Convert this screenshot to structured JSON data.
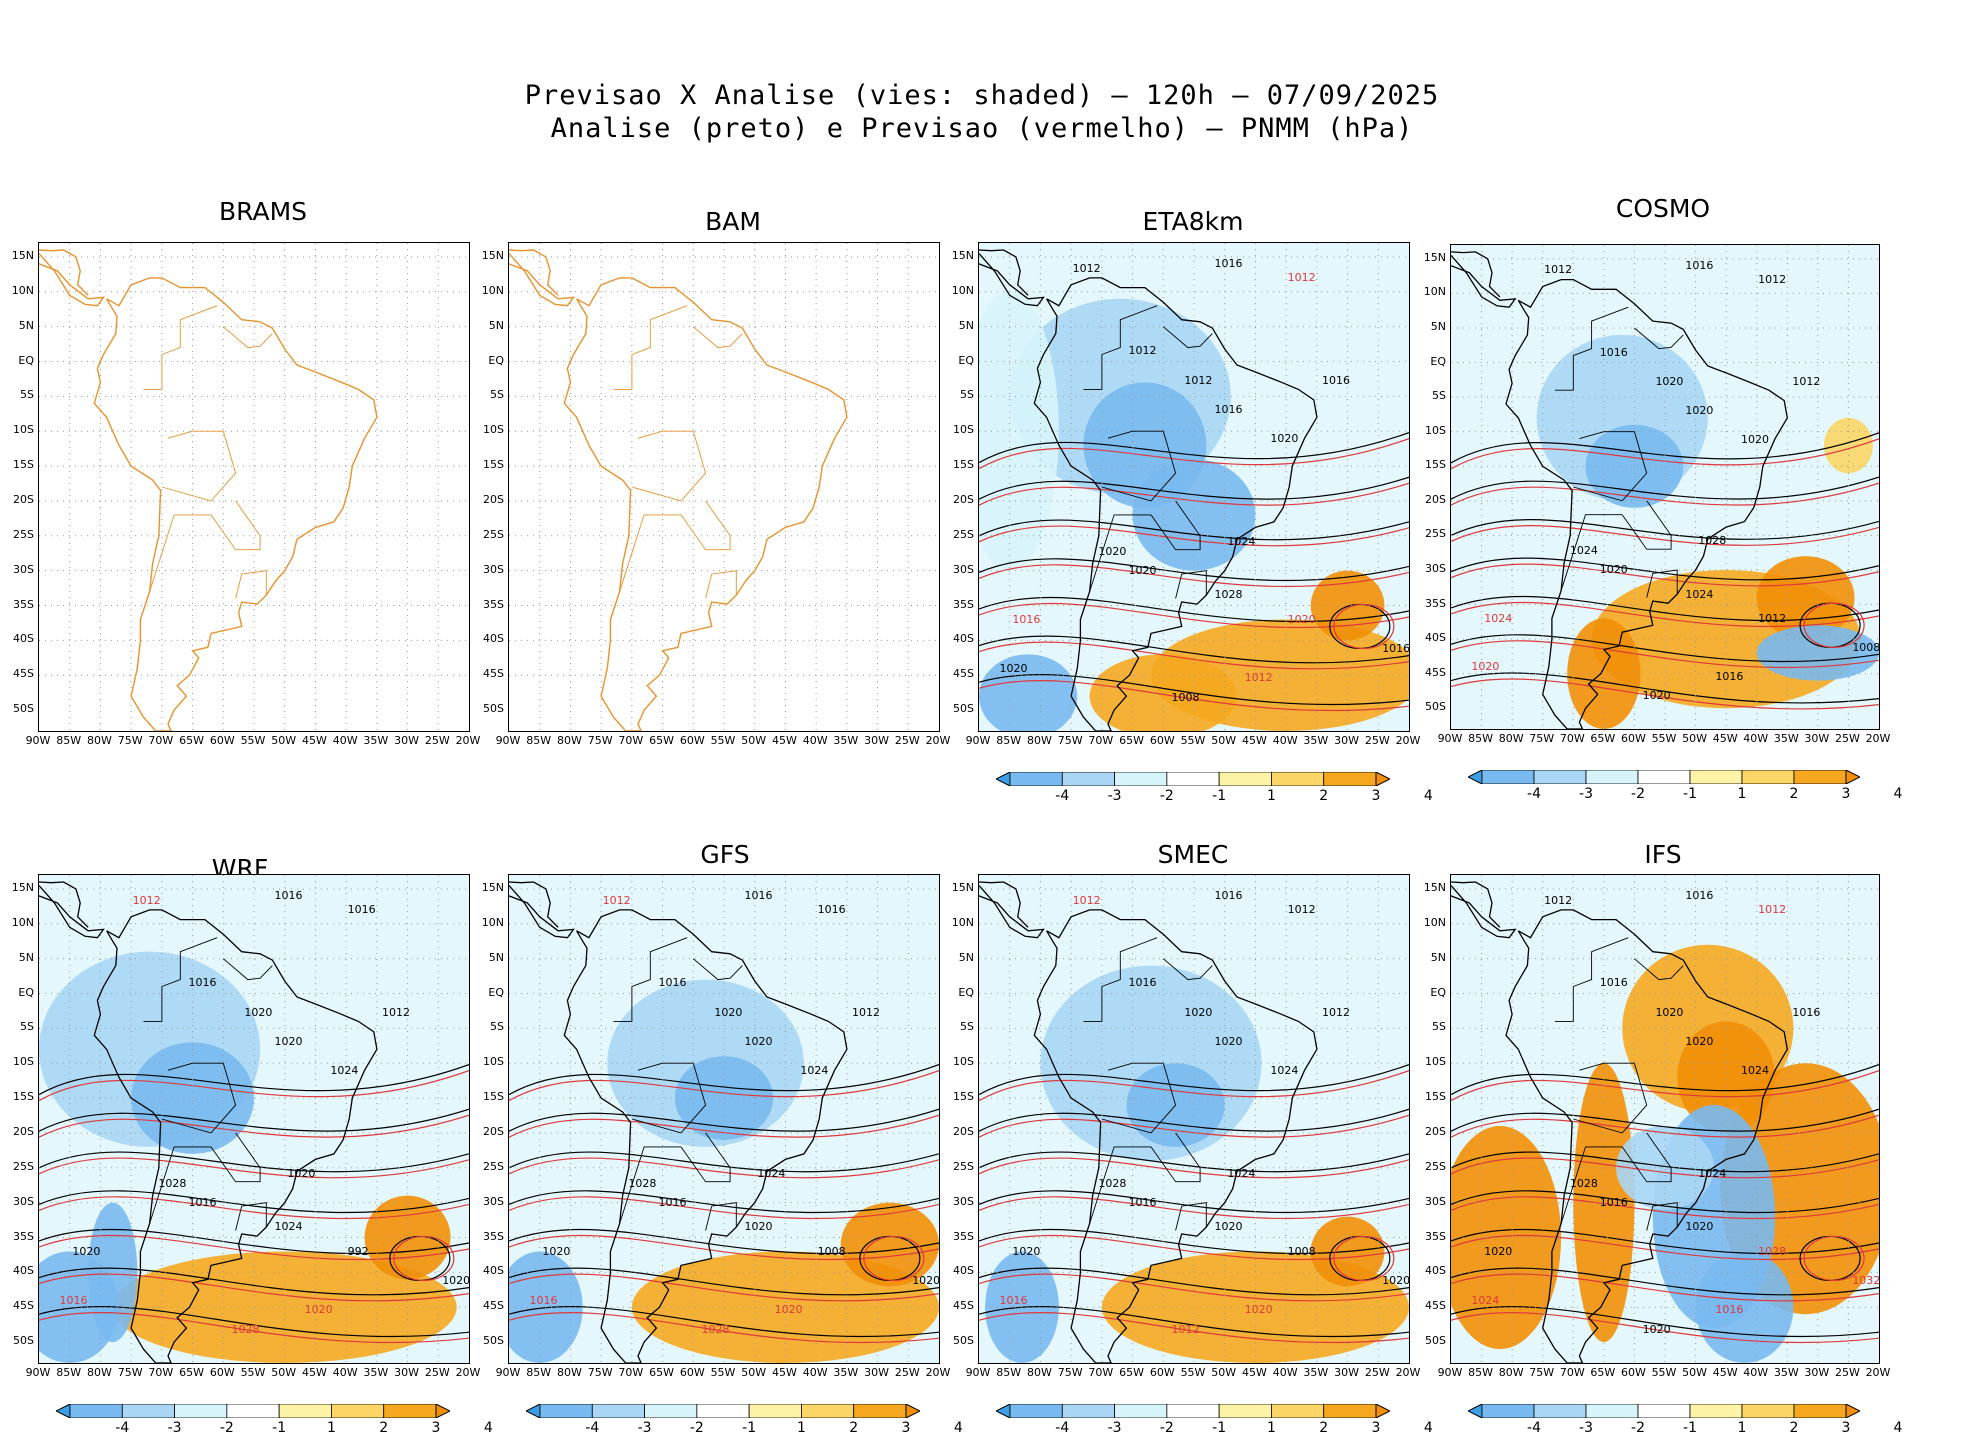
{
  "title": {
    "line1": "Previsao X Analise (vies: shaded) — 120h — 07/09/2025",
    "line2": "Analise (preto) e Previsao (vermelho) — PNMM (hPa)"
  },
  "lat_ticks": [
    "15N",
    "10N",
    "5N",
    "EQ",
    "5S",
    "10S",
    "15S",
    "20S",
    "25S",
    "30S",
    "35S",
    "40S",
    "45S",
    "50S"
  ],
  "lon_ticks": [
    "90W",
    "85W",
    "80W",
    "75W",
    "70W",
    "65W",
    "60W",
    "55W",
    "50W",
    "45W",
    "40W",
    "35W",
    "30W",
    "25W",
    "20W"
  ],
  "colorbar": {
    "labels": [
      "-4",
      "-3",
      "-2",
      "-1",
      "1",
      "2",
      "3",
      "4"
    ],
    "colors": [
      "#3c9ee6",
      "#78b9f0",
      "#a9d6f5",
      "#d7f4fb",
      "#ffffff",
      "#fdf3a6",
      "#fbd565",
      "#f5a81f",
      "#f28f06"
    ]
  },
  "colors": {
    "coast": "#e8922e",
    "analysis": "#000000",
    "forecast": "#e0383a"
  },
  "panels": [
    {
      "name": "BRAMS",
      "has_data": false,
      "labels": []
    },
    {
      "name": "BAM",
      "has_data": false,
      "labels": []
    },
    {
      "name": "ETA8km",
      "has_data": true,
      "labels": [
        {
          "t": "1012",
          "c": "black"
        },
        {
          "t": "1016",
          "c": "black"
        },
        {
          "t": "1012",
          "c": "red"
        },
        {
          "t": "1016",
          "c": "black"
        },
        {
          "t": "1012",
          "c": "black"
        },
        {
          "t": "1012",
          "c": "black"
        },
        {
          "t": "1016",
          "c": "black"
        },
        {
          "t": "1020",
          "c": "black"
        },
        {
          "t": "1020",
          "c": "black"
        },
        {
          "t": "1024",
          "c": "black"
        },
        {
          "t": "1028",
          "c": "black"
        },
        {
          "t": "1020",
          "c": "black"
        },
        {
          "t": "1020",
          "c": "red"
        },
        {
          "t": "1016",
          "c": "black"
        },
        {
          "t": "1012",
          "c": "red"
        },
        {
          "t": "1008",
          "c": "black"
        },
        {
          "t": "1020",
          "c": "black"
        },
        {
          "t": "1016",
          "c": "red"
        }
      ]
    },
    {
      "name": "COSMO",
      "has_data": true,
      "labels": [
        {
          "t": "1012",
          "c": "black"
        },
        {
          "t": "1016",
          "c": "black"
        },
        {
          "t": "1012",
          "c": "black"
        },
        {
          "t": "1012",
          "c": "black"
        },
        {
          "t": "1016",
          "c": "black"
        },
        {
          "t": "1020",
          "c": "black"
        },
        {
          "t": "1020",
          "c": "black"
        },
        {
          "t": "1020",
          "c": "black"
        },
        {
          "t": "1024",
          "c": "black"
        },
        {
          "t": "1028",
          "c": "black"
        },
        {
          "t": "1024",
          "c": "black"
        },
        {
          "t": "1020",
          "c": "black"
        },
        {
          "t": "1012",
          "c": "black"
        },
        {
          "t": "1008",
          "c": "black"
        },
        {
          "t": "1016",
          "c": "black"
        },
        {
          "t": "1020",
          "c": "black"
        },
        {
          "t": "1020",
          "c": "red"
        },
        {
          "t": "1024",
          "c": "red"
        }
      ]
    },
    {
      "name": "WRF",
      "has_data": true,
      "labels": [
        {
          "t": "1012",
          "c": "red"
        },
        {
          "t": "1016",
          "c": "black"
        },
        {
          "t": "1016",
          "c": "black"
        },
        {
          "t": "1012",
          "c": "black"
        },
        {
          "t": "1016",
          "c": "black"
        },
        {
          "t": "1020",
          "c": "black"
        },
        {
          "t": "1020",
          "c": "black"
        },
        {
          "t": "1024",
          "c": "black"
        },
        {
          "t": "1028",
          "c": "black"
        },
        {
          "t": "1020",
          "c": "black"
        },
        {
          "t": "1024",
          "c": "black"
        },
        {
          "t": "1016",
          "c": "black"
        },
        {
          "t": "992",
          "c": "black"
        },
        {
          "t": "1020",
          "c": "black"
        },
        {
          "t": "1020",
          "c": "red"
        },
        {
          "t": "1028",
          "c": "red"
        },
        {
          "t": "1016",
          "c": "red"
        },
        {
          "t": "1020",
          "c": "black"
        }
      ]
    },
    {
      "name": "GFS",
      "has_data": true,
      "labels": [
        {
          "t": "1012",
          "c": "red"
        },
        {
          "t": "1016",
          "c": "black"
        },
        {
          "t": "1016",
          "c": "black"
        },
        {
          "t": "1012",
          "c": "black"
        },
        {
          "t": "1016",
          "c": "black"
        },
        {
          "t": "1020",
          "c": "black"
        },
        {
          "t": "1020",
          "c": "black"
        },
        {
          "t": "1024",
          "c": "black"
        },
        {
          "t": "1028",
          "c": "black"
        },
        {
          "t": "1024",
          "c": "black"
        },
        {
          "t": "1020",
          "c": "black"
        },
        {
          "t": "1016",
          "c": "black"
        },
        {
          "t": "1008",
          "c": "black"
        },
        {
          "t": "1020",
          "c": "black"
        },
        {
          "t": "1020",
          "c": "red"
        },
        {
          "t": "1028",
          "c": "red"
        },
        {
          "t": "1016",
          "c": "red"
        },
        {
          "t": "1020",
          "c": "black"
        }
      ]
    },
    {
      "name": "SMEC",
      "has_data": true,
      "labels": [
        {
          "t": "1012",
          "c": "red"
        },
        {
          "t": "1016",
          "c": "black"
        },
        {
          "t": "1012",
          "c": "black"
        },
        {
          "t": "1012",
          "c": "black"
        },
        {
          "t": "1016",
          "c": "black"
        },
        {
          "t": "1020",
          "c": "black"
        },
        {
          "t": "1020",
          "c": "black"
        },
        {
          "t": "1024",
          "c": "black"
        },
        {
          "t": "1028",
          "c": "black"
        },
        {
          "t": "1024",
          "c": "black"
        },
        {
          "t": "1020",
          "c": "black"
        },
        {
          "t": "1016",
          "c": "black"
        },
        {
          "t": "1008",
          "c": "black"
        },
        {
          "t": "1020",
          "c": "black"
        },
        {
          "t": "1020",
          "c": "red"
        },
        {
          "t": "1012",
          "c": "red"
        },
        {
          "t": "1016",
          "c": "red"
        },
        {
          "t": "1020",
          "c": "black"
        }
      ]
    },
    {
      "name": "IFS",
      "has_data": true,
      "labels": [
        {
          "t": "1012",
          "c": "black"
        },
        {
          "t": "1016",
          "c": "black"
        },
        {
          "t": "1012",
          "c": "red"
        },
        {
          "t": "1016",
          "c": "black"
        },
        {
          "t": "1016",
          "c": "black"
        },
        {
          "t": "1020",
          "c": "black"
        },
        {
          "t": "1020",
          "c": "black"
        },
        {
          "t": "1024",
          "c": "black"
        },
        {
          "t": "1028",
          "c": "black"
        },
        {
          "t": "1024",
          "c": "black"
        },
        {
          "t": "1020",
          "c": "black"
        },
        {
          "t": "1016",
          "c": "black"
        },
        {
          "t": "1028",
          "c": "red"
        },
        {
          "t": "1032",
          "c": "red"
        },
        {
          "t": "1016",
          "c": "red"
        },
        {
          "t": "1020",
          "c": "black"
        },
        {
          "t": "1024",
          "c": "red"
        },
        {
          "t": "1020",
          "c": "black"
        }
      ]
    }
  ]
}
